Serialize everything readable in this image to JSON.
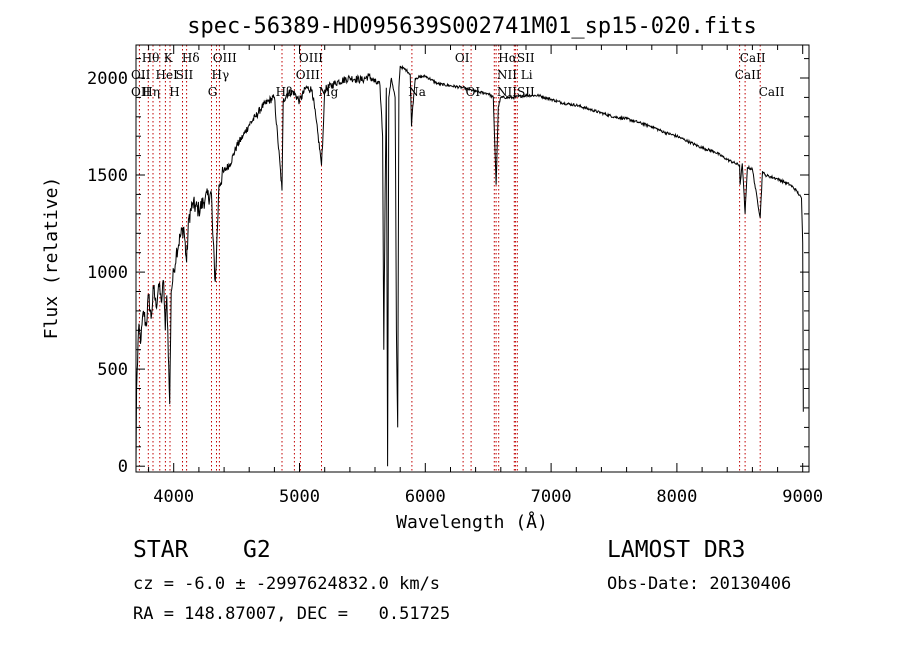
{
  "chart_data": {
    "type": "line",
    "title": "spec-56389-HD095639S002741M01_sp15-020.fits",
    "xlabel": "Wavelength (Å)",
    "ylabel": "Flux (relative)",
    "xlim": [
      3700,
      9050
    ],
    "ylim": [
      -30,
      2170
    ],
    "xticks": [
      4000,
      5000,
      6000,
      7000,
      8000,
      9000
    ],
    "yticks": [
      0,
      500,
      1000,
      1500,
      2000
    ],
    "spectrum_anchors": [
      [
        3700,
        0
      ],
      [
        3705,
        400
      ],
      [
        3720,
        700
      ],
      [
        3740,
        650
      ],
      [
        3760,
        800
      ],
      [
        3780,
        720
      ],
      [
        3800,
        880
      ],
      [
        3820,
        760
      ],
      [
        3840,
        920
      ],
      [
        3860,
        820
      ],
      [
        3880,
        940
      ],
      [
        3900,
        850
      ],
      [
        3920,
        950
      ],
      [
        3933,
        700
      ],
      [
        3945,
        880
      ],
      [
        3968,
        320
      ],
      [
        3980,
        900
      ],
      [
        4000,
        1000
      ],
      [
        4020,
        1100
      ],
      [
        4050,
        1180
      ],
      [
        4080,
        1230
      ],
      [
        4102,
        1050
      ],
      [
        4120,
        1280
      ],
      [
        4150,
        1350
      ],
      [
        4200,
        1320
      ],
      [
        4250,
        1380
      ],
      [
        4300,
        1400
      ],
      [
        4310,
        1200
      ],
      [
        4330,
        950
      ],
      [
        4340,
        1100
      ],
      [
        4360,
        1450
      ],
      [
        4400,
        1520
      ],
      [
        4450,
        1560
      ],
      [
        4500,
        1650
      ],
      [
        4550,
        1700
      ],
      [
        4600,
        1760
      ],
      [
        4650,
        1800
      ],
      [
        4700,
        1850
      ],
      [
        4750,
        1880
      ],
      [
        4800,
        1900
      ],
      [
        4861,
        1420
      ],
      [
        4870,
        1880
      ],
      [
        4900,
        1920
      ],
      [
        4950,
        1930
      ],
      [
        5000,
        1880
      ],
      [
        5050,
        1950
      ],
      [
        5100,
        1940
      ],
      [
        5167,
        1600
      ],
      [
        5175,
        1550
      ],
      [
        5183,
        1650
      ],
      [
        5200,
        1940
      ],
      [
        5300,
        1980
      ],
      [
        5400,
        2000
      ],
      [
        5500,
        1990
      ],
      [
        5550,
        2010
      ],
      [
        5600,
        1980
      ],
      [
        5640,
        1960
      ],
      [
        5660,
        1700
      ],
      [
        5670,
        600
      ],
      [
        5680,
        1400
      ],
      [
        5690,
        1950
      ],
      [
        5700,
        0
      ],
      [
        5710,
        1900
      ],
      [
        5730,
        2000
      ],
      [
        5760,
        1900
      ],
      [
        5770,
        700
      ],
      [
        5780,
        200
      ],
      [
        5790,
        1950
      ],
      [
        5800,
        2060
      ],
      [
        5850,
        2040
      ],
      [
        5880,
        2020
      ],
      [
        5890,
        1750
      ],
      [
        5900,
        1850
      ],
      [
        5920,
        2000
      ],
      [
        6000,
        2010
      ],
      [
        6100,
        1970
      ],
      [
        6200,
        1960
      ],
      [
        6300,
        1950
      ],
      [
        6400,
        1930
      ],
      [
        6500,
        1920
      ],
      [
        6540,
        1900
      ],
      [
        6563,
        1450
      ],
      [
        6580,
        1850
      ],
      [
        6600,
        1900
      ],
      [
        6700,
        1900
      ],
      [
        6800,
        1910
      ],
      [
        6900,
        1910
      ],
      [
        7000,
        1890
      ],
      [
        7100,
        1870
      ],
      [
        7200,
        1860
      ],
      [
        7300,
        1840
      ],
      [
        7400,
        1820
      ],
      [
        7500,
        1800
      ],
      [
        7600,
        1790
      ],
      [
        7700,
        1770
      ],
      [
        7800,
        1750
      ],
      [
        7900,
        1720
      ],
      [
        8000,
        1700
      ],
      [
        8100,
        1670
      ],
      [
        8200,
        1640
      ],
      [
        8300,
        1620
      ],
      [
        8400,
        1580
      ],
      [
        8498,
        1550
      ],
      [
        8502,
        1450
      ],
      [
        8520,
        1560
      ],
      [
        8542,
        1300
      ],
      [
        8560,
        1540
      ],
      [
        8600,
        1530
      ],
      [
        8662,
        1280
      ],
      [
        8680,
        1520
      ],
      [
        8700,
        1500
      ],
      [
        8800,
        1480
      ],
      [
        8900,
        1450
      ],
      [
        8950,
        1420
      ],
      [
        8990,
        1380
      ],
      [
        9000,
        1150
      ],
      [
        9005,
        280
      ]
    ],
    "lines": [
      {
        "wl": 3727,
        "top": "OII",
        "bottom": "OII"
      },
      {
        "wl": 3798,
        "top": "Hθ",
        "bottom": "Hη"
      },
      {
        "wl": 3835,
        "top": "",
        "bottom": "Hη"
      },
      {
        "wl": 3889,
        "top": "",
        "bottom": ""
      },
      {
        "wl": 3934,
        "top": "K",
        "bottom": "HeI"
      },
      {
        "wl": 3970,
        "top": "",
        "bottom": "H"
      },
      {
        "wl": 4070,
        "top": "",
        "bottom": "SII"
      },
      {
        "wl": 4102,
        "top": "Hδ",
        "bottom": ""
      },
      {
        "wl": 4300,
        "top": "",
        "bottom": "G"
      },
      {
        "wl": 4340,
        "top": "Hγ",
        "bottom": ""
      },
      {
        "wl": 4363,
        "top": "OIII",
        "bottom": ""
      },
      {
        "wl": 4861,
        "top": "",
        "bottom": "Hβ"
      },
      {
        "wl": 4959,
        "top": "OIII",
        "bottom": ""
      },
      {
        "wl": 5007,
        "top": "OIII",
        "bottom": ""
      },
      {
        "wl": 5175,
        "top": "",
        "bottom": "Mg"
      },
      {
        "wl": 5893,
        "top": "",
        "bottom": "Na"
      },
      {
        "wl": 6300,
        "top": "OI",
        "bottom": ""
      },
      {
        "wl": 6364,
        "top": "",
        "bottom": "OI"
      },
      {
        "wl": 6548,
        "top": "",
        "bottom": "NII"
      },
      {
        "wl": 6563,
        "top": "Hα",
        "bottom": ""
      },
      {
        "wl": 6583,
        "top": "NII",
        "bottom": "NII"
      },
      {
        "wl": 6707,
        "top": "",
        "bottom": "Li"
      },
      {
        "wl": 6716,
        "top": "SII",
        "bottom": "SII"
      },
      {
        "wl": 6731,
        "top": "",
        "bottom": ""
      },
      {
        "wl": 8498,
        "top": "CaII",
        "bottom": ""
      },
      {
        "wl": 8542,
        "top": "CaII",
        "bottom": ""
      },
      {
        "wl": 8662,
        "top": "",
        "bottom": "CaII"
      }
    ],
    "line_label_rows": [
      {
        "text": "Hθ",
        "wl": 3745,
        "row": 1
      },
      {
        "text": "K",
        "wl": 3920,
        "row": 1
      },
      {
        "text": "Hδ",
        "wl": 4065,
        "row": 1
      },
      {
        "text": "OIII",
        "wl": 4310,
        "row": 1
      },
      {
        "text": "OIII",
        "wl": 4995,
        "row": 1
      },
      {
        "text": "OI",
        "wl": 6235,
        "row": 1
      },
      {
        "text": "HαSII",
        "wl": 6580,
        "row": 1
      },
      {
        "text": "CaII",
        "wl": 8500,
        "row": 1
      },
      {
        "text": "OII",
        "wl": 3660,
        "row": 2
      },
      {
        "text": "HeI",
        "wl": 3855,
        "row": 2
      },
      {
        "text": "SII",
        "wl": 4015,
        "row": 2
      },
      {
        "text": "Hγ",
        "wl": 4300,
        "row": 2
      },
      {
        "text": "OIII",
        "wl": 4970,
        "row": 2
      },
      {
        "text": "NII Li",
        "wl": 6570,
        "row": 2
      },
      {
        "text": "CaII",
        "wl": 8460,
        "row": 2
      },
      {
        "text": "OII",
        "wl": 3660,
        "row": 3
      },
      {
        "text": "Hη",
        "wl": 3750,
        "row": 3
      },
      {
        "text": "H",
        "wl": 3965,
        "row": 3
      },
      {
        "text": "G",
        "wl": 4270,
        "row": 3
      },
      {
        "text": "Hβ",
        "wl": 4810,
        "row": 3
      },
      {
        "text": "Mg",
        "wl": 5150,
        "row": 3
      },
      {
        "text": "Na",
        "wl": 5865,
        "row": 3
      },
      {
        "text": "OI",
        "wl": 6320,
        "row": 3
      },
      {
        "text": "NIISII",
        "wl": 6570,
        "row": 3
      },
      {
        "text": "CaII",
        "wl": 8650,
        "row": 3
      }
    ]
  },
  "info": {
    "object_type": "STAR",
    "subclass": "G2",
    "survey": "LAMOST DR3",
    "cz": "cz = -6.0 ± -2997624832.0 km/s",
    "obs_date": "Obs-Date: 20130406",
    "radec": "RA = 148.87007, DEC =   0.51725"
  }
}
